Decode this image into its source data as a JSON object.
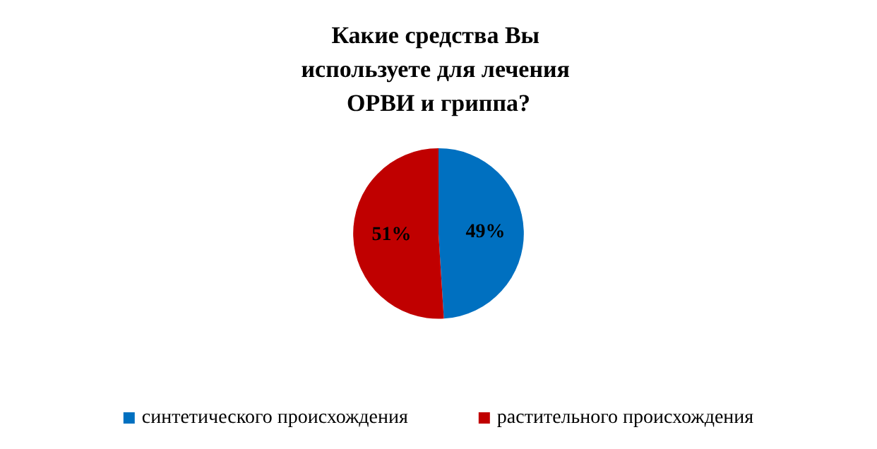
{
  "chart_data": {
    "type": "pie",
    "title": "Какие средства Вы используете для лечения ОРВИ и гриппа?",
    "categories": [
      "синтетического происхождения",
      "растительного происхождения"
    ],
    "values": [
      49,
      51
    ],
    "colors": [
      "#0070c0",
      "#c00000"
    ],
    "value_labels": [
      "49%",
      "51%"
    ],
    "legend": "bottom"
  }
}
